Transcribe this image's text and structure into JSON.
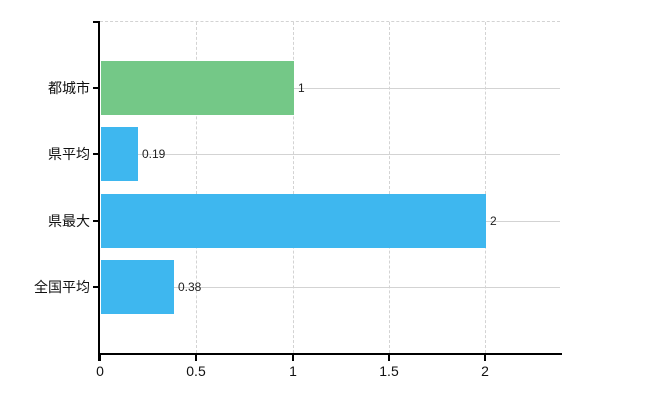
{
  "chart_data": {
    "type": "bar",
    "orientation": "horizontal",
    "title": "",
    "categories": [
      "都城市",
      "県平均",
      "県最大",
      "全国平均"
    ],
    "values": [
      1,
      0.19,
      2,
      0.38
    ],
    "value_labels": [
      "1",
      "0.19",
      "2",
      "0.38"
    ],
    "bar_colors": [
      "#74c887",
      "#3eb7ef",
      "#3eb7ef",
      "#3eb7ef"
    ],
    "x_ticks": [
      0,
      0.5,
      1,
      1.5,
      2
    ],
    "x_tick_labels": [
      "0",
      "0.5",
      "1",
      "1.5",
      "2"
    ],
    "xlim": [
      0,
      2.4
    ],
    "grid": {
      "vertical_style": "dashed",
      "horizontal_style": "solid",
      "color": "#d3d3d3",
      "top_border_style": "dashed"
    },
    "axis_color": "#000000",
    "text_color": "#111111",
    "background": "#ffffff",
    "legend": "none"
  }
}
